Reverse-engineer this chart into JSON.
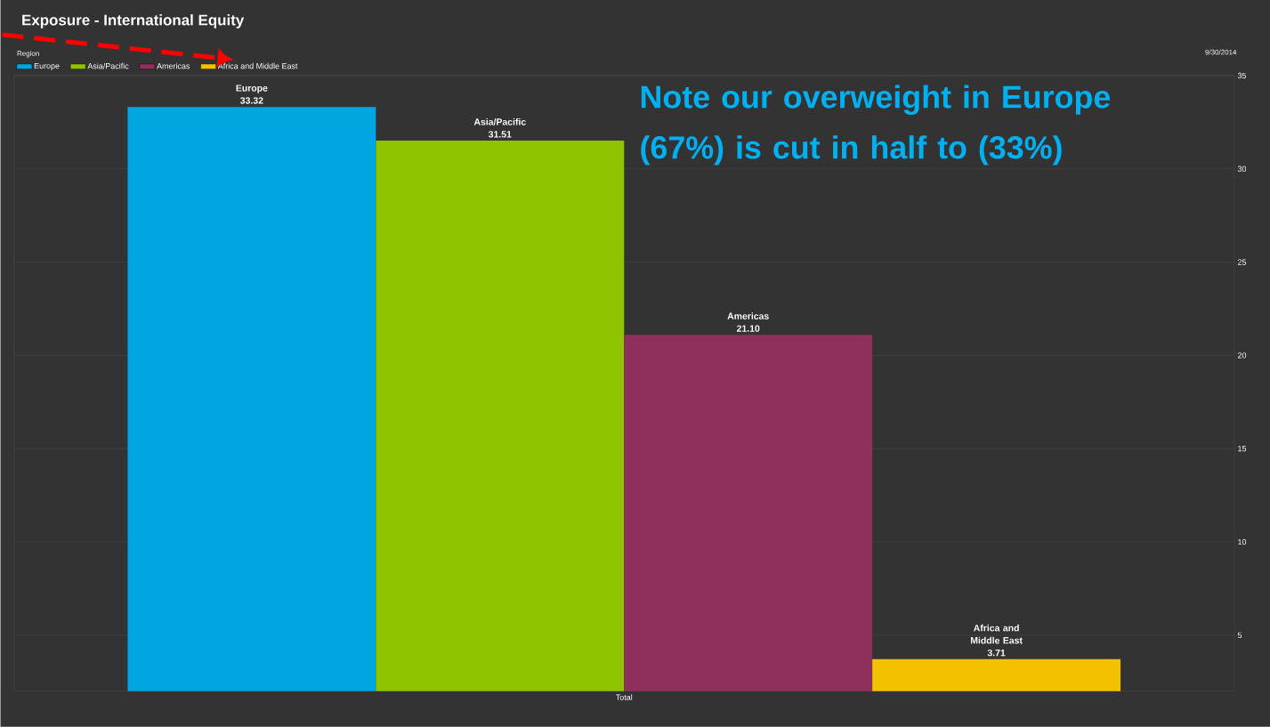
{
  "chart_data": {
    "type": "bar",
    "title": "Exposure - International Equity",
    "legend_title": "Region",
    "xlabel": null,
    "categories": [
      "Total"
    ],
    "series": [
      {
        "name": "Europe",
        "color": "#00a6e0",
        "values": [
          33.32
        ],
        "value_labels": [
          "33.32"
        ]
      },
      {
        "name": "Asia/Pacific",
        "color": "#8ec400",
        "values": [
          31.51
        ],
        "value_labels": [
          "31.51"
        ]
      },
      {
        "name": "Americas",
        "color": "#8e2f5c",
        "values": [
          21.1
        ],
        "value_labels": [
          "21.10"
        ]
      },
      {
        "name": "Africa and Middle East",
        "color": "#f2c200",
        "values": [
          3.71
        ],
        "value_labels": [
          "3.71"
        ]
      }
    ],
    "ylim": [
      2,
      35
    ],
    "yticks": [
      5,
      10,
      15,
      20,
      25,
      30,
      35
    ],
    "grid": "y",
    "legend": "top left",
    "annotations": [
      "Note our overweight in Europe (67%) is cut in half to (33%)",
      "9/30/2014"
    ]
  }
}
